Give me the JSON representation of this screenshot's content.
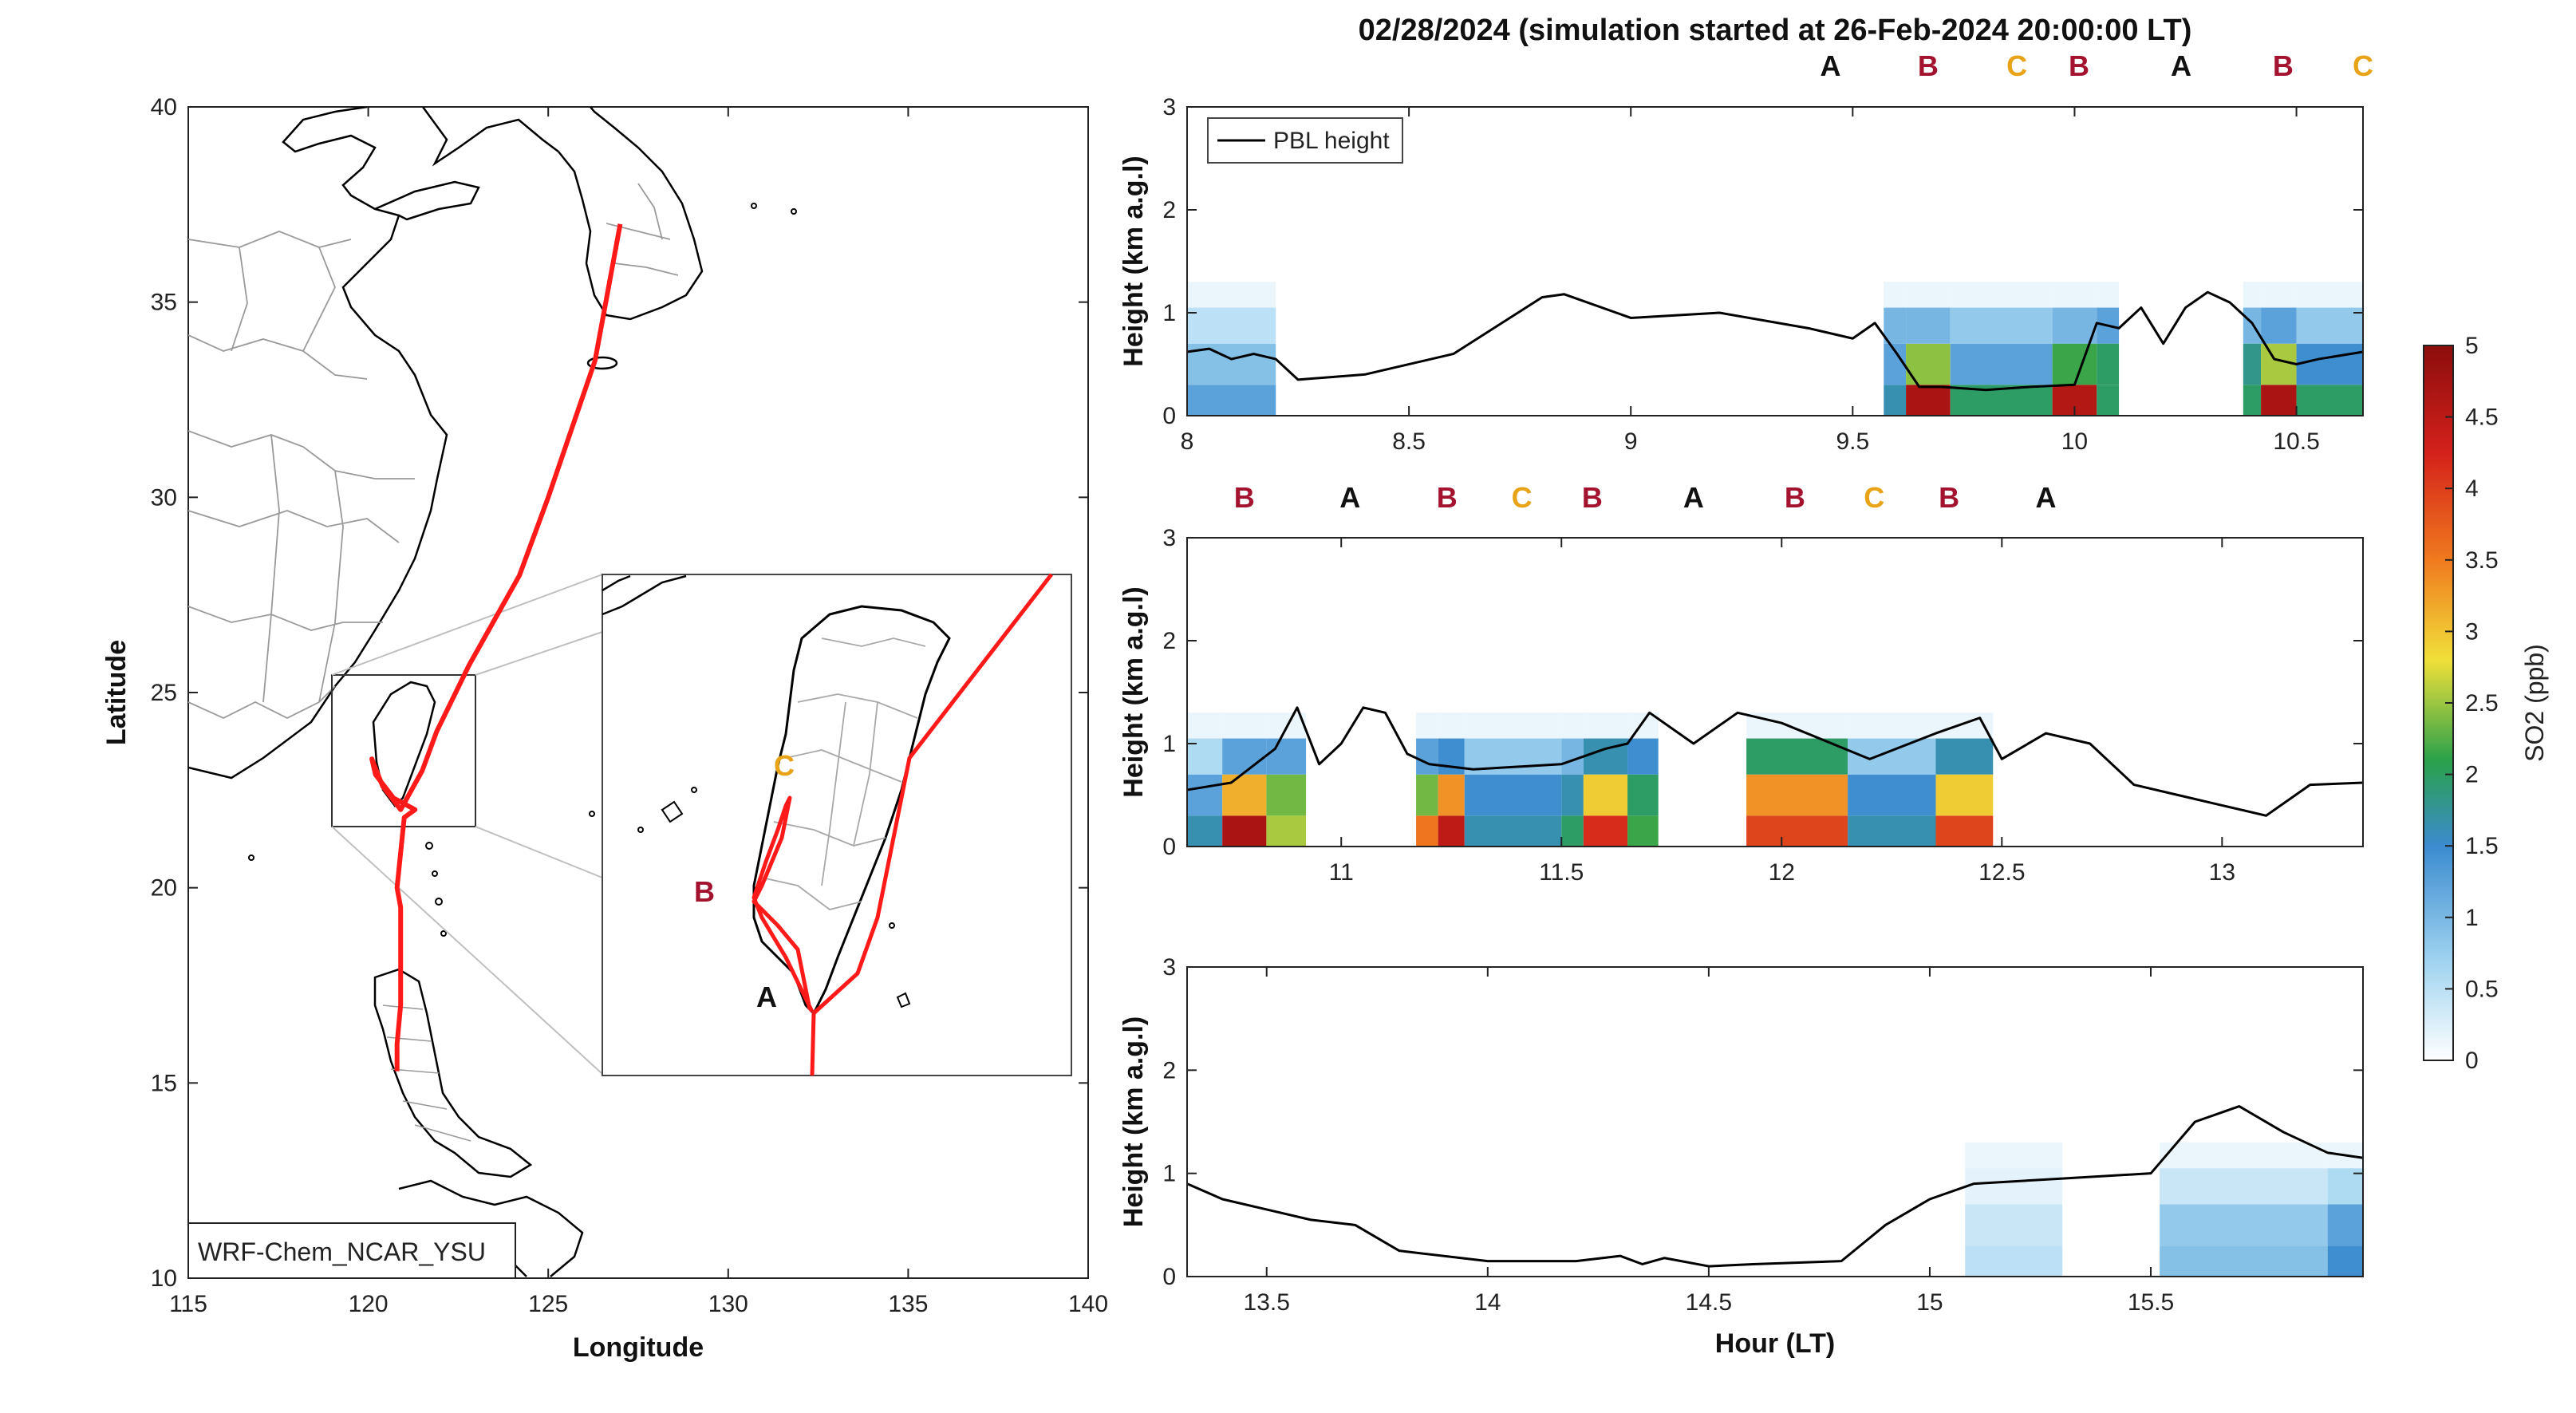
{
  "figure_title": "02/28/2024 (simulation started at 26-Feb-2024 20:00:00 LT)",
  "colors": {
    "track": "#ff1a1a",
    "A": "#111111",
    "B": "#a3122e",
    "C": "#e8a317",
    "pbl": "#000000"
  },
  "colormap": [
    "#ffffff",
    "#9fd3f0",
    "#3b8bcf",
    "#2aa14a",
    "#f0e03a",
    "#f07a1e",
    "#d4211b",
    "#8b0d0d"
  ],
  "chart_data": [
    {
      "type": "map",
      "xlabel": "Longitude",
      "ylabel": "Latitude",
      "xlim": [
        115,
        140
      ],
      "ylim": [
        10,
        40
      ],
      "xticks": [
        "115",
        "120",
        "125",
        "130",
        "135",
        "140"
      ],
      "yticks": [
        "10",
        "15",
        "20",
        "25",
        "30",
        "35",
        "40"
      ],
      "legend": "WRF-Chem_NCAR_YSU",
      "track": {
        "lon": [
          127.0,
          126.3,
          125.0,
          124.2,
          122.8,
          121.9,
          121.5,
          120.9,
          120.4,
          120.1,
          120.2,
          120.7,
          121.3,
          121.0,
          120.8,
          120.9,
          120.9,
          120.9,
          120.8,
          120.8,
          120.8
        ],
        "lat": [
          37.0,
          33.5,
          30.0,
          28.0,
          25.7,
          24.0,
          23.0,
          22.0,
          22.6,
          23.3,
          22.9,
          22.3,
          22.0,
          21.8,
          20.0,
          19.5,
          18.0,
          17.0,
          16.0,
          15.5,
          15.3
        ]
      },
      "inset_labels": [
        "C",
        "B",
        "A"
      ]
    },
    {
      "type": "heatmap",
      "ylabel": "Height (km a.g.l)",
      "xlim": [
        8,
        10.65
      ],
      "ylim": [
        0,
        3
      ],
      "xticks": [
        "8",
        "8.5",
        "9",
        "9.5",
        "10",
        "10.5"
      ],
      "yticks": [
        "0",
        "1",
        "2",
        "3"
      ],
      "legend": "PBL height",
      "site_labels": [
        "A",
        "B",
        "C",
        "B",
        "A",
        "B",
        "C"
      ],
      "pbl": {
        "x": [
          8.0,
          8.05,
          8.1,
          8.15,
          8.2,
          8.25,
          8.4,
          8.6,
          8.8,
          8.85,
          9.0,
          9.2,
          9.4,
          9.5,
          9.55,
          9.6,
          9.65,
          9.7,
          9.8,
          9.9,
          10.0,
          10.05,
          10.1,
          10.15,
          10.2,
          10.25,
          10.3,
          10.35,
          10.4,
          10.45,
          10.5,
          10.55,
          10.65
        ],
        "y": [
          0.62,
          0.65,
          0.55,
          0.6,
          0.55,
          0.35,
          0.4,
          0.6,
          1.15,
          1.18,
          0.95,
          1.0,
          0.85,
          0.75,
          0.9,
          0.6,
          0.28,
          0.28,
          0.25,
          0.28,
          0.3,
          0.9,
          0.85,
          1.05,
          0.7,
          1.05,
          1.2,
          1.1,
          0.9,
          0.55,
          0.5,
          0.55,
          0.62
        ]
      },
      "so2_columns": [
        {
          "x0": 8.0,
          "x1": 8.2,
          "values": [
            1.2,
            0.9,
            0.5
          ]
        },
        {
          "x0": 9.57,
          "x1": 9.62,
          "values": [
            1.6,
            1.2,
            1.0
          ]
        },
        {
          "x0": 9.62,
          "x1": 9.72,
          "values": [
            4.7,
            2.5,
            1.0
          ]
        },
        {
          "x0": 9.72,
          "x1": 9.95,
          "values": [
            2.0,
            1.2,
            0.8
          ]
        },
        {
          "x0": 9.95,
          "x1": 10.05,
          "values": [
            4.6,
            2.2,
            1.0
          ]
        },
        {
          "x0": 10.05,
          "x1": 10.1,
          "values": [
            2.0,
            2.0,
            1.2
          ]
        },
        {
          "x0": 10.38,
          "x1": 10.42,
          "values": [
            2.0,
            1.8,
            1.0
          ]
        },
        {
          "x0": 10.42,
          "x1": 10.5,
          "values": [
            4.7,
            2.6,
            1.2
          ]
        },
        {
          "x0": 10.5,
          "x1": 10.65,
          "values": [
            2.0,
            1.4,
            0.8
          ]
        }
      ]
    },
    {
      "type": "heatmap",
      "ylabel": "Height (km a.g.l)",
      "xlim": [
        10.65,
        13.32
      ],
      "ylim": [
        0,
        3
      ],
      "xticks": [
        "11",
        "11.5",
        "12",
        "12.5",
        "13"
      ],
      "yticks": [
        "0",
        "1",
        "2",
        "3"
      ],
      "site_labels": [
        "B",
        "A",
        "B",
        "C",
        "B",
        "A",
        "B",
        "C",
        "B",
        "A"
      ],
      "pbl": {
        "x": [
          10.65,
          10.75,
          10.85,
          10.9,
          10.95,
          11.0,
          11.05,
          11.1,
          11.15,
          11.2,
          11.3,
          11.5,
          11.6,
          11.65,
          11.7,
          11.8,
          11.9,
          12.0,
          12.2,
          12.35,
          12.45,
          12.5,
          12.6,
          12.7,
          12.8,
          12.9,
          13.0,
          13.1,
          13.2,
          13.32
        ],
        "y": [
          0.55,
          0.62,
          0.95,
          1.35,
          0.8,
          1.0,
          1.35,
          1.3,
          0.9,
          0.8,
          0.75,
          0.8,
          0.95,
          1.0,
          1.3,
          1.0,
          1.3,
          1.2,
          0.85,
          1.1,
          1.25,
          0.85,
          1.1,
          1.0,
          0.6,
          0.5,
          0.4,
          0.3,
          0.6,
          0.62
        ]
      },
      "so2_columns": [
        {
          "x0": 10.65,
          "x1": 10.73,
          "values": [
            1.6,
            1.2,
            0.6
          ]
        },
        {
          "x0": 10.73,
          "x1": 10.83,
          "values": [
            4.7,
            3.2,
            1.2
          ]
        },
        {
          "x0": 10.83,
          "x1": 10.92,
          "values": [
            2.6,
            2.4,
            1.2
          ]
        },
        {
          "x0": 11.17,
          "x1": 11.22,
          "values": [
            3.6,
            2.4,
            1.2
          ]
        },
        {
          "x0": 11.22,
          "x1": 11.28,
          "values": [
            4.5,
            3.4,
            1.4
          ]
        },
        {
          "x0": 11.28,
          "x1": 11.5,
          "values": [
            1.6,
            1.4,
            0.8
          ]
        },
        {
          "x0": 11.5,
          "x1": 11.55,
          "values": [
            2.0,
            1.6,
            1.0
          ]
        },
        {
          "x0": 11.55,
          "x1": 11.65,
          "values": [
            4.2,
            3.0,
            1.6
          ]
        },
        {
          "x0": 11.65,
          "x1": 11.72,
          "values": [
            2.2,
            2.0,
            1.4
          ]
        },
        {
          "x0": 11.92,
          "x1": 12.15,
          "values": [
            4.0,
            3.4,
            2.0
          ]
        },
        {
          "x0": 12.15,
          "x1": 12.35,
          "values": [
            1.6,
            1.4,
            0.8
          ]
        },
        {
          "x0": 12.35,
          "x1": 12.48,
          "values": [
            4.0,
            3.0,
            1.6
          ]
        }
      ]
    },
    {
      "type": "heatmap",
      "ylabel": "Height (km a.g.l)",
      "xlabel": "Hour (LT)",
      "xlim": [
        13.32,
        15.98
      ],
      "ylim": [
        0,
        3
      ],
      "xticks": [
        "13.5",
        "14",
        "14.5",
        "15",
        "15.5"
      ],
      "yticks": [
        "0",
        "1",
        "2",
        "3"
      ],
      "pbl": {
        "x": [
          13.32,
          13.4,
          13.5,
          13.6,
          13.7,
          13.8,
          14.0,
          14.2,
          14.3,
          14.35,
          14.4,
          14.5,
          14.6,
          14.8,
          14.9,
          15.0,
          15.1,
          15.3,
          15.5,
          15.6,
          15.7,
          15.8,
          15.9,
          15.98
        ],
        "y": [
          0.9,
          0.75,
          0.65,
          0.55,
          0.5,
          0.25,
          0.15,
          0.15,
          0.2,
          0.12,
          0.18,
          0.1,
          0.12,
          0.15,
          0.5,
          0.75,
          0.9,
          0.95,
          1.0,
          1.5,
          1.65,
          1.4,
          1.2,
          1.15
        ]
      },
      "so2_columns": [
        {
          "x0": 15.08,
          "x1": 15.3,
          "values": [
            0.5,
            0.4,
            0.2
          ]
        },
        {
          "x0": 15.52,
          "x1": 15.9,
          "values": [
            0.9,
            0.8,
            0.4
          ]
        },
        {
          "x0": 15.9,
          "x1": 15.98,
          "values": [
            1.4,
            1.2,
            0.6
          ]
        }
      ]
    },
    {
      "type": "colorbar",
      "label": "SO2 (ppb)",
      "range": [
        0,
        5
      ],
      "ticks": [
        "0",
        "0.5",
        "1",
        "1.5",
        "2",
        "2.5",
        "3",
        "3.5",
        "4",
        "4.5",
        "5"
      ]
    }
  ]
}
